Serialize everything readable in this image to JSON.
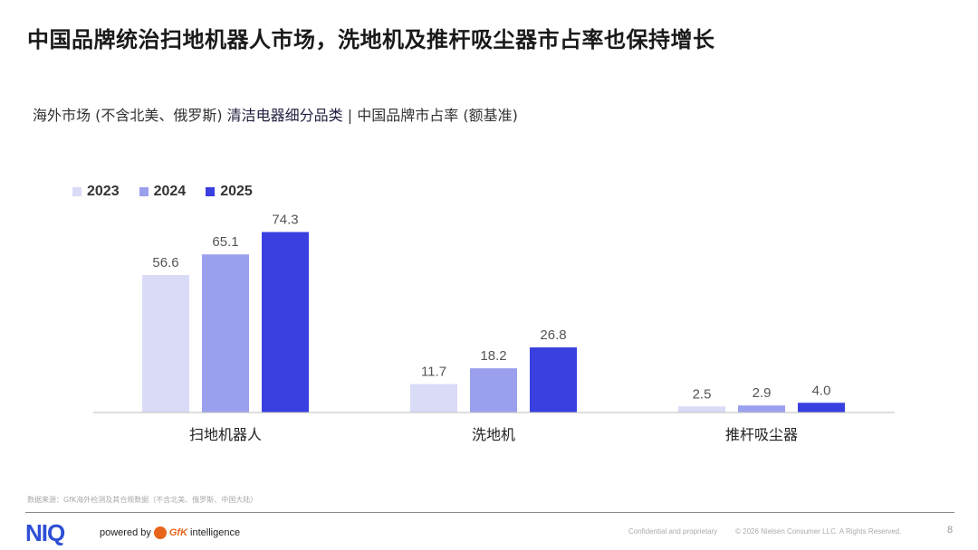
{
  "title": "中国品牌统治扫地机器人市场，洗地机及推杆吸尘器市占率也保持增长",
  "subtitle": {
    "part1": "海外市场 (不含北美、俄罗斯) ",
    "part2": "清洁电器细分品类",
    "part3": " | 中国品牌市占率 (额基准)"
  },
  "chart_data": {
    "type": "bar",
    "categories": [
      "扫地机器人",
      "洗地机",
      "推杆吸尘器"
    ],
    "series": [
      {
        "name": "2023",
        "color": "#d9dbf7",
        "values": [
          56.6,
          11.7,
          2.5
        ],
        "labels": [
          "56.6",
          "11.7",
          "2.5"
        ]
      },
      {
        "name": "2024",
        "color": "#9aa0ee",
        "values": [
          65.1,
          18.2,
          2.9
        ],
        "labels": [
          "65.1",
          "18.2",
          "2.9"
        ]
      },
      {
        "name": "2025",
        "color": "#3a3fe0",
        "values": [
          74.3,
          26.8,
          4.0
        ],
        "labels": [
          "74.3",
          "26.8",
          "4.0"
        ]
      }
    ],
    "ylim": [
      0,
      80
    ],
    "xlabel": "",
    "ylabel": "",
    "grid": false,
    "legend": "top-left"
  },
  "footer": {
    "source": "数据来源：GfK海外检测及其合规数据（不含北美、俄罗斯、中国大陆）",
    "logo": "NIQ",
    "powered_by": "powered by",
    "gfk": "GfK",
    "intelligence": "intelligence",
    "confidential": "Confidential and proprietary",
    "copyright": "© 2026 Nielsen Consumer LLC. A  Rights Reserved.",
    "page_number": "8"
  }
}
